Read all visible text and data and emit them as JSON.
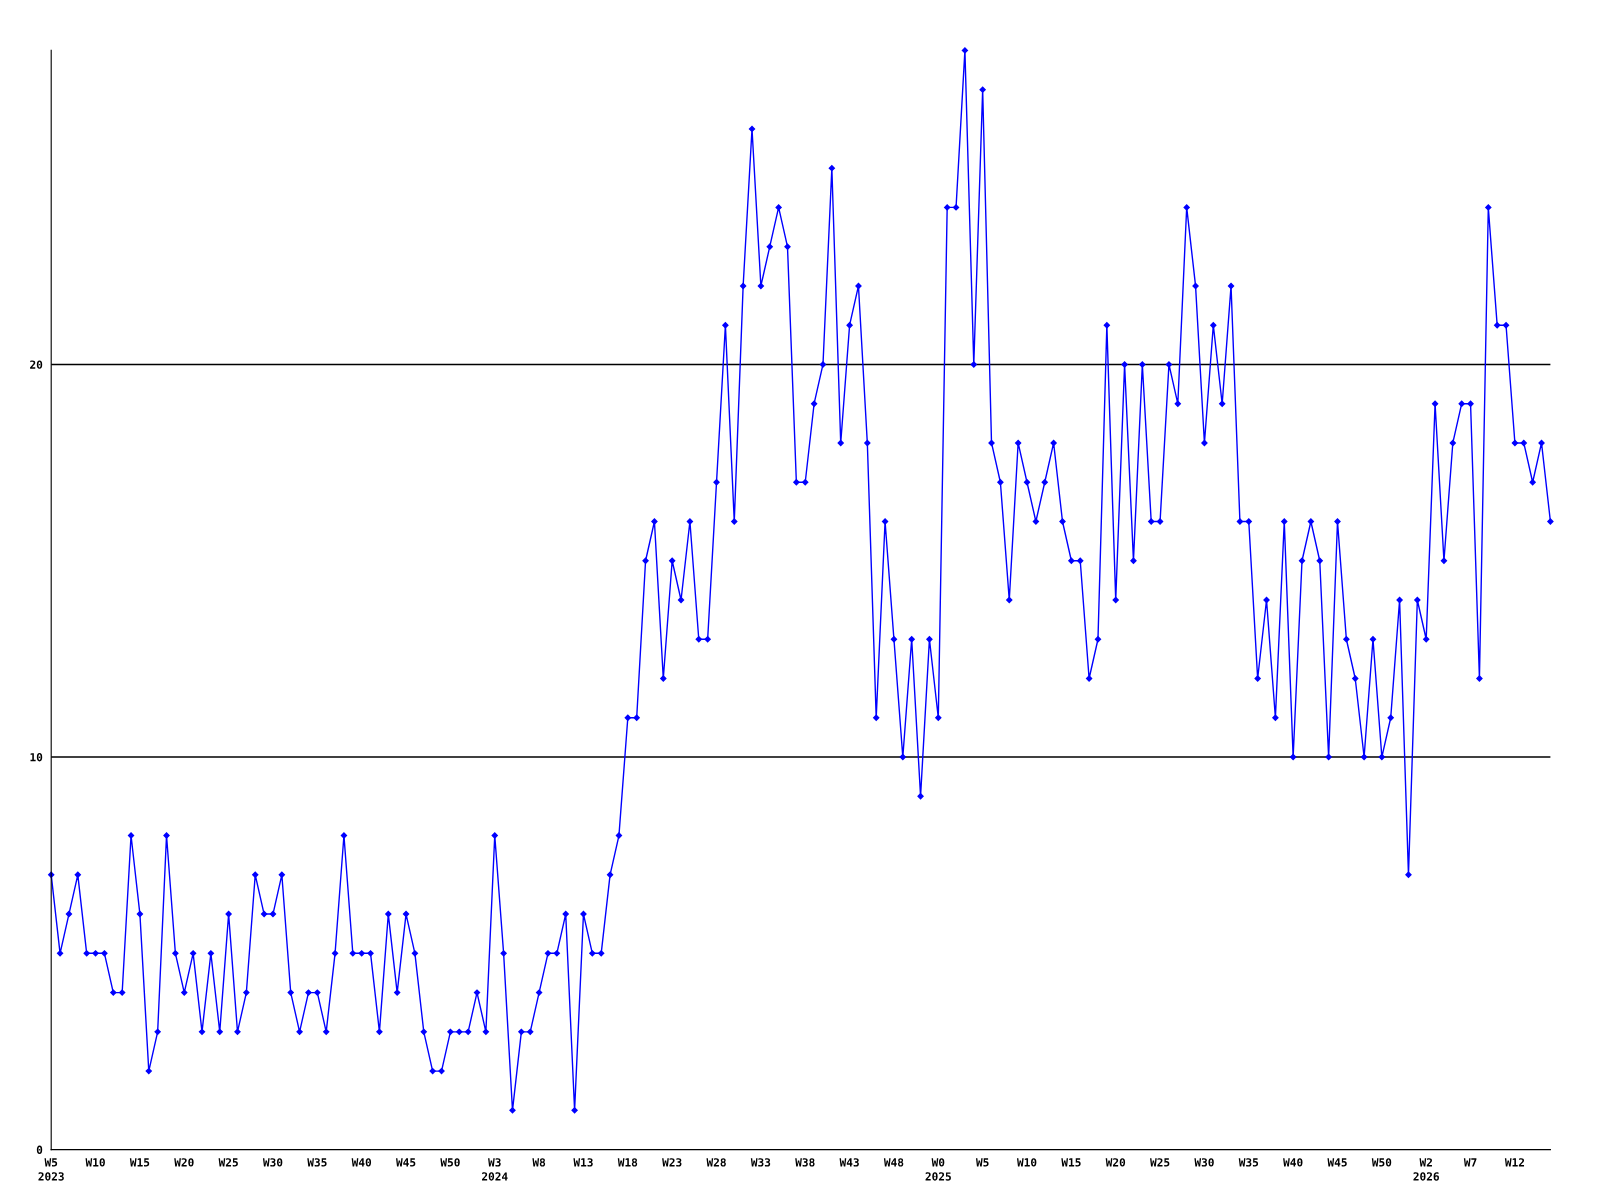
{
  "chart_data": {
    "type": "line",
    "categories": [
      "W5\n2023",
      null,
      null,
      null,
      null,
      "W10",
      null,
      null,
      null,
      null,
      "W15",
      null,
      null,
      null,
      null,
      "W20",
      null,
      null,
      null,
      null,
      "W25",
      null,
      null,
      null,
      null,
      "W30",
      null,
      null,
      null,
      null,
      "W35",
      null,
      null,
      null,
      null,
      "W40",
      null,
      null,
      null,
      null,
      "W45",
      null,
      null,
      null,
      null,
      "W50",
      null,
      null,
      null,
      null,
      "W3\n2024",
      null,
      null,
      null,
      null,
      "W8",
      null,
      null,
      null,
      null,
      "W13",
      null,
      null,
      null,
      null,
      "W18",
      null,
      null,
      null,
      null,
      "W23",
      null,
      null,
      null,
      null,
      "W28",
      null,
      null,
      null,
      null,
      "W33",
      null,
      null,
      null,
      null,
      "W38",
      null,
      null,
      null,
      null,
      "W43",
      null,
      null,
      null,
      null,
      "W48",
      null,
      null,
      null,
      null,
      "W0\n2025",
      null,
      null,
      null,
      null,
      "W5",
      null,
      null,
      null,
      null,
      "W10",
      null,
      null,
      null,
      null,
      "W15",
      null,
      null,
      null,
      null,
      "W20",
      null,
      null,
      null,
      null,
      "W25",
      null,
      null,
      null,
      null,
      "W30",
      null,
      null,
      null,
      null,
      "W35",
      null,
      null,
      null,
      null,
      "W40",
      null,
      null,
      null,
      null,
      "W45",
      null,
      null,
      null,
      null,
      "W50",
      null,
      null,
      null,
      null,
      "W2\n2026",
      null,
      null,
      null,
      null,
      "W7",
      null,
      null,
      null,
      null,
      "W12",
      null,
      null,
      null,
      null
    ],
    "series": [
      {
        "color": "#0000ff",
        "values": [
          7,
          5,
          6,
          7,
          5,
          5,
          5,
          4,
          4,
          8,
          6,
          2,
          3,
          8,
          5,
          4,
          5,
          3,
          5,
          3,
          6,
          3,
          4,
          7,
          6,
          6,
          7,
          4,
          3,
          4,
          4,
          3,
          5,
          8,
          5,
          5,
          5,
          3,
          6,
          4,
          6,
          5,
          3,
          2,
          2,
          3,
          3,
          3,
          4,
          3,
          8,
          5,
          1,
          3,
          3,
          4,
          5,
          5,
          6,
          1,
          6,
          5,
          5,
          7,
          8,
          11,
          11,
          15,
          16,
          12,
          15,
          14,
          16,
          13,
          13,
          17,
          21,
          16,
          22,
          26,
          22,
          23,
          24,
          23,
          17,
          17,
          19,
          20,
          25,
          18,
          21,
          22,
          18,
          11,
          16,
          13,
          10,
          13,
          9,
          13,
          11,
          24,
          24,
          28,
          20,
          27,
          18,
          17,
          14,
          18,
          17,
          16,
          17,
          18,
          16,
          15,
          15,
          12,
          13,
          21,
          14,
          20,
          15,
          20,
          16,
          16,
          20,
          19,
          24,
          22,
          18,
          21,
          19,
          22,
          16,
          16,
          12,
          14,
          11,
          16,
          10,
          15,
          16,
          15,
          10,
          16,
          13,
          12,
          10,
          13,
          10,
          11,
          14,
          7,
          14,
          13,
          19,
          15,
          18,
          19,
          19,
          12,
          24,
          21,
          21,
          18,
          18,
          17,
          18,
          16
        ]
      }
    ],
    "ylim": [
      0,
      28
    ],
    "yticks": [
      0,
      10,
      20
    ],
    "grid": "y",
    "marker": "diamond",
    "line_style": "solid"
  }
}
